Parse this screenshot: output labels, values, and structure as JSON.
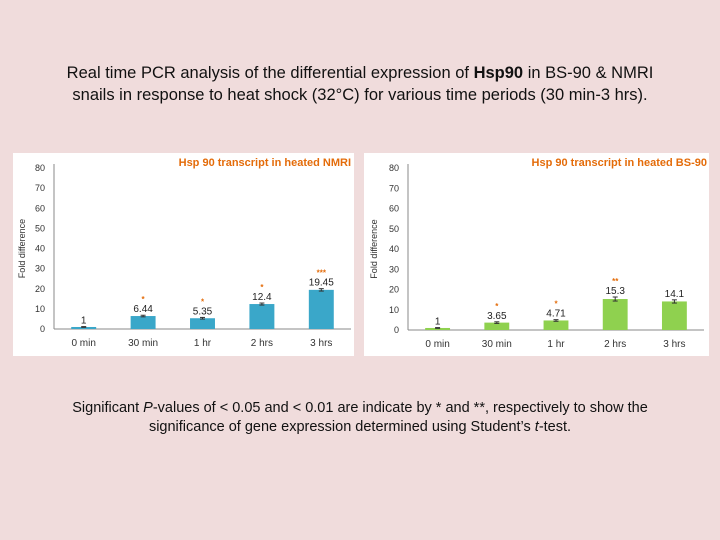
{
  "title": {
    "line1_pre": "Real time PCR analysis of the differential expression of ",
    "gene": "Hsp90",
    "line1_post": " in BS-90 & NMRI",
    "line2": "snails in response to heat shock (32°C) for various time periods (30 min-3 hrs)."
  },
  "footnote": {
    "part1": "Significant ",
    "p_italic": "P",
    "part2": "-values of < 0.05 and < 0.01 are indicate by * and **, respectively to show the",
    "part3": "significance of gene expression determined using Student’s ",
    "t_italic": "t",
    "part4": "-test."
  },
  "chart_data": [
    {
      "type": "bar",
      "title": "Hsp 90 transcript in heated NMRI",
      "ylabel": "Fold difference",
      "xlabel": "",
      "ylim": [
        0,
        80
      ],
      "yticks": [
        0,
        10,
        20,
        30,
        40,
        50,
        60,
        70,
        80
      ],
      "categories": [
        "0 min",
        "30 min",
        "1 hr",
        "2 hrs",
        "3 hrs"
      ],
      "values": [
        1,
        6.44,
        5.35,
        12.4,
        19.45
      ],
      "value_labels": [
        "1",
        "6.44",
        "5.35",
        "12.4",
        "19.45"
      ],
      "errors": [
        0.2,
        0.4,
        0.4,
        0.5,
        0.6
      ],
      "significance": [
        "",
        "*",
        "*",
        "*",
        "***"
      ],
      "bar_colors": [
        "#3aa7c9",
        "#3aa7c9",
        "#3aa7c9",
        "#3aa7c9",
        "#3aa7c9"
      ],
      "title_color": "#e46c0a",
      "star_color": "#e46c0a"
    },
    {
      "type": "bar",
      "title": "Hsp 90 transcript in heated BS-90",
      "ylabel": "Fold difference",
      "xlabel": "",
      "ylim": [
        0,
        80
      ],
      "yticks": [
        0,
        10,
        20,
        30,
        40,
        50,
        60,
        70,
        80
      ],
      "categories": [
        "0 min",
        "30 min",
        "1 hr",
        "2 hrs",
        "3 hrs"
      ],
      "values": [
        1,
        3.65,
        4.71,
        15.3,
        14.1
      ],
      "value_labels": [
        "1",
        "3.65",
        "4.71",
        "15.3",
        "14.1"
      ],
      "errors": [
        0.2,
        0.4,
        0.4,
        1.0,
        0.8
      ],
      "significance": [
        "",
        "*",
        "*",
        "**",
        ""
      ],
      "bar_colors": [
        "#8fd14f",
        "#8fd14f",
        "#8fd14f",
        "#8fd14f",
        "#8fd14f"
      ],
      "title_color": "#e46c0a",
      "star_color": "#e46c0a"
    }
  ]
}
